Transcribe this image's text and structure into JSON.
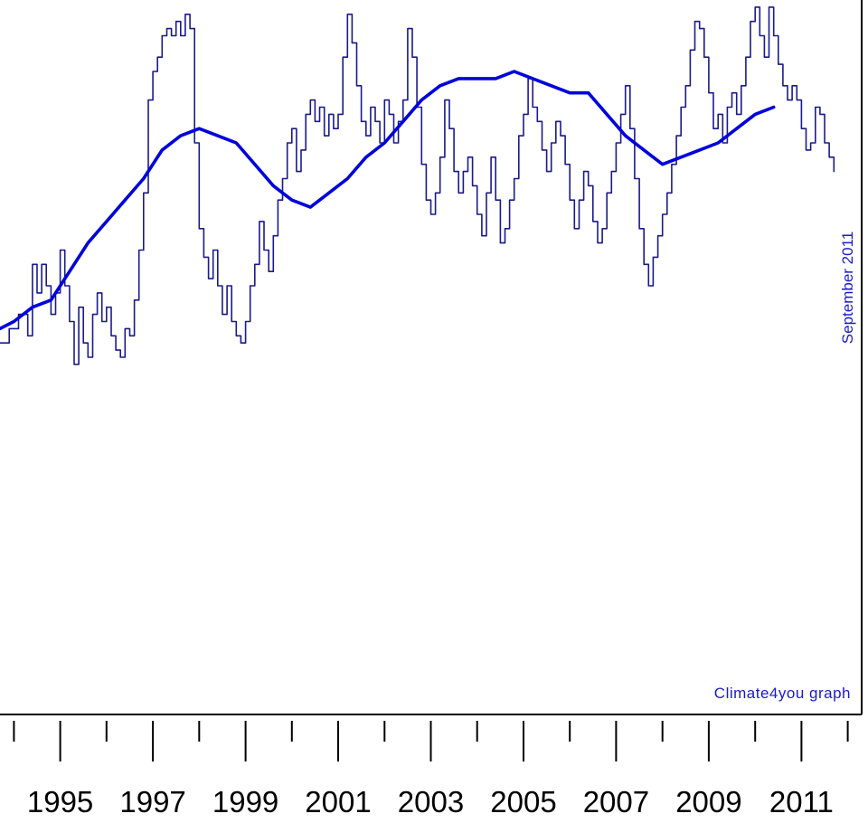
{
  "chart_data": {
    "type": "line",
    "title": "",
    "xlabel": "",
    "ylabel": "",
    "xlim": [
      1993.7,
      2012.3
    ],
    "ylim": [
      0,
      1
    ],
    "grid": false,
    "x_tick_labels": [
      "1995",
      "1997",
      "1999",
      "2001",
      "2003",
      "2005",
      "2007",
      "2009",
      "2011"
    ],
    "annotations": {
      "date": "September 2011",
      "credit": "Climate4you graph"
    },
    "colors": {
      "monthly": "#1a1a8c",
      "running_mean": "#0000dd",
      "annotation_text": "#1a1acc",
      "axes": "#000000"
    },
    "series": [
      {
        "role": "monthly",
        "points": [
          [
            1993.7,
            0.52
          ],
          [
            1993.9,
            0.54
          ],
          [
            1994.1,
            0.56
          ],
          [
            1994.3,
            0.53
          ],
          [
            1994.4,
            0.63
          ],
          [
            1994.5,
            0.59
          ],
          [
            1994.6,
            0.63
          ],
          [
            1994.7,
            0.6
          ],
          [
            1994.8,
            0.56
          ],
          [
            1994.9,
            0.59
          ],
          [
            1995.0,
            0.65
          ],
          [
            1995.1,
            0.6
          ],
          [
            1995.2,
            0.55
          ],
          [
            1995.3,
            0.49
          ],
          [
            1995.4,
            0.57
          ],
          [
            1995.5,
            0.52
          ],
          [
            1995.6,
            0.5
          ],
          [
            1995.7,
            0.56
          ],
          [
            1995.8,
            0.59
          ],
          [
            1995.9,
            0.55
          ],
          [
            1996.0,
            0.57
          ],
          [
            1996.1,
            0.53
          ],
          [
            1996.2,
            0.51
          ],
          [
            1996.3,
            0.5
          ],
          [
            1996.4,
            0.54
          ],
          [
            1996.5,
            0.53
          ],
          [
            1996.6,
            0.58
          ],
          [
            1996.7,
            0.65
          ],
          [
            1996.8,
            0.73
          ],
          [
            1996.9,
            0.86
          ],
          [
            1997.0,
            0.9
          ],
          [
            1997.1,
            0.92
          ],
          [
            1997.2,
            0.95
          ],
          [
            1997.3,
            0.96
          ],
          [
            1997.4,
            0.95
          ],
          [
            1997.5,
            0.97
          ],
          [
            1997.6,
            0.95
          ],
          [
            1997.7,
            0.98
          ],
          [
            1997.8,
            0.96
          ],
          [
            1997.9,
            0.8
          ],
          [
            1998.0,
            0.68
          ],
          [
            1998.1,
            0.64
          ],
          [
            1998.2,
            0.61
          ],
          [
            1998.3,
            0.65
          ],
          [
            1998.4,
            0.6
          ],
          [
            1998.5,
            0.56
          ],
          [
            1998.6,
            0.6
          ],
          [
            1998.7,
            0.55
          ],
          [
            1998.8,
            0.53
          ],
          [
            1998.9,
            0.52
          ],
          [
            1999.0,
            0.55
          ],
          [
            1999.1,
            0.6
          ],
          [
            1999.2,
            0.63
          ],
          [
            1999.3,
            0.69
          ],
          [
            1999.4,
            0.65
          ],
          [
            1999.5,
            0.62
          ],
          [
            1999.6,
            0.67
          ],
          [
            1999.7,
            0.72
          ],
          [
            1999.8,
            0.75
          ],
          [
            1999.9,
            0.8
          ],
          [
            2000.0,
            0.82
          ],
          [
            2000.1,
            0.76
          ],
          [
            2000.2,
            0.79
          ],
          [
            2000.3,
            0.84
          ],
          [
            2000.4,
            0.86
          ],
          [
            2000.5,
            0.83
          ],
          [
            2000.6,
            0.85
          ],
          [
            2000.7,
            0.81
          ],
          [
            2000.8,
            0.84
          ],
          [
            2000.9,
            0.82
          ],
          [
            2001.0,
            0.84
          ],
          [
            2001.1,
            0.92
          ],
          [
            2001.2,
            0.98
          ],
          [
            2001.3,
            0.94
          ],
          [
            2001.4,
            0.88
          ],
          [
            2001.5,
            0.83
          ],
          [
            2001.6,
            0.81
          ],
          [
            2001.7,
            0.85
          ],
          [
            2001.8,
            0.83
          ],
          [
            2001.9,
            0.8
          ],
          [
            2002.0,
            0.86
          ],
          [
            2002.1,
            0.84
          ],
          [
            2002.2,
            0.8
          ],
          [
            2002.3,
            0.83
          ],
          [
            2002.4,
            0.86
          ],
          [
            2002.5,
            0.96
          ],
          [
            2002.6,
            0.92
          ],
          [
            2002.7,
            0.85
          ],
          [
            2002.8,
            0.77
          ],
          [
            2002.9,
            0.72
          ],
          [
            2003.0,
            0.7
          ],
          [
            2003.1,
            0.73
          ],
          [
            2003.2,
            0.78
          ],
          [
            2003.3,
            0.86
          ],
          [
            2003.4,
            0.82
          ],
          [
            2003.5,
            0.76
          ],
          [
            2003.6,
            0.73
          ],
          [
            2003.7,
            0.76
          ],
          [
            2003.8,
            0.78
          ],
          [
            2003.9,
            0.74
          ],
          [
            2004.0,
            0.7
          ],
          [
            2004.1,
            0.67
          ],
          [
            2004.2,
            0.73
          ],
          [
            2004.3,
            0.78
          ],
          [
            2004.4,
            0.72
          ],
          [
            2004.5,
            0.66
          ],
          [
            2004.6,
            0.68
          ],
          [
            2004.7,
            0.72
          ],
          [
            2004.8,
            0.75
          ],
          [
            2004.9,
            0.81
          ],
          [
            2005.0,
            0.84
          ],
          [
            2005.1,
            0.89
          ],
          [
            2005.2,
            0.85
          ],
          [
            2005.3,
            0.83
          ],
          [
            2005.4,
            0.79
          ],
          [
            2005.5,
            0.76
          ],
          [
            2005.6,
            0.8
          ],
          [
            2005.7,
            0.83
          ],
          [
            2005.8,
            0.81
          ],
          [
            2005.9,
            0.77
          ],
          [
            2006.0,
            0.72
          ],
          [
            2006.1,
            0.68
          ],
          [
            2006.2,
            0.72
          ],
          [
            2006.3,
            0.76
          ],
          [
            2006.4,
            0.74
          ],
          [
            2006.5,
            0.69
          ],
          [
            2006.6,
            0.66
          ],
          [
            2006.7,
            0.68
          ],
          [
            2006.8,
            0.73
          ],
          [
            2006.9,
            0.76
          ],
          [
            2007.0,
            0.8
          ],
          [
            2007.1,
            0.84
          ],
          [
            2007.2,
            0.88
          ],
          [
            2007.3,
            0.82
          ],
          [
            2007.4,
            0.75
          ],
          [
            2007.5,
            0.68
          ],
          [
            2007.6,
            0.63
          ],
          [
            2007.7,
            0.6
          ],
          [
            2007.8,
            0.64
          ],
          [
            2007.9,
            0.67
          ],
          [
            2008.0,
            0.7
          ],
          [
            2008.1,
            0.73
          ],
          [
            2008.2,
            0.77
          ],
          [
            2008.3,
            0.81
          ],
          [
            2008.4,
            0.85
          ],
          [
            2008.5,
            0.88
          ],
          [
            2008.6,
            0.93
          ],
          [
            2008.7,
            0.97
          ],
          [
            2008.8,
            0.96
          ],
          [
            2008.9,
            0.92
          ],
          [
            2009.0,
            0.87
          ],
          [
            2009.1,
            0.82
          ],
          [
            2009.2,
            0.84
          ],
          [
            2009.3,
            0.8
          ],
          [
            2009.4,
            0.85
          ],
          [
            2009.5,
            0.87
          ],
          [
            2009.6,
            0.84
          ],
          [
            2009.7,
            0.88
          ],
          [
            2009.8,
            0.92
          ],
          [
            2009.9,
            0.97
          ],
          [
            2010.0,
            0.99
          ],
          [
            2010.1,
            0.95
          ],
          [
            2010.2,
            0.92
          ],
          [
            2010.3,
            0.99
          ],
          [
            2010.4,
            0.95
          ],
          [
            2010.5,
            0.91
          ],
          [
            2010.6,
            0.88
          ],
          [
            2010.7,
            0.86
          ],
          [
            2010.8,
            0.88
          ],
          [
            2010.9,
            0.86
          ],
          [
            2011.0,
            0.82
          ],
          [
            2011.1,
            0.79
          ],
          [
            2011.2,
            0.8
          ],
          [
            2011.3,
            0.85
          ],
          [
            2011.4,
            0.84
          ],
          [
            2011.5,
            0.8
          ],
          [
            2011.6,
            0.78
          ],
          [
            2011.7,
            0.76
          ]
        ]
      },
      {
        "role": "running_mean",
        "points": [
          [
            1993.7,
            0.54
          ],
          [
            1994.0,
            0.55
          ],
          [
            1994.4,
            0.57
          ],
          [
            1994.8,
            0.58
          ],
          [
            1995.2,
            0.62
          ],
          [
            1995.6,
            0.66
          ],
          [
            1996.0,
            0.69
          ],
          [
            1996.4,
            0.72
          ],
          [
            1996.8,
            0.75
          ],
          [
            1997.2,
            0.79
          ],
          [
            1997.6,
            0.81
          ],
          [
            1998.0,
            0.82
          ],
          [
            1998.4,
            0.81
          ],
          [
            1998.8,
            0.8
          ],
          [
            1999.2,
            0.77
          ],
          [
            1999.6,
            0.74
          ],
          [
            2000.0,
            0.72
          ],
          [
            2000.4,
            0.71
          ],
          [
            2000.8,
            0.73
          ],
          [
            2001.2,
            0.75
          ],
          [
            2001.6,
            0.78
          ],
          [
            2002.0,
            0.8
          ],
          [
            2002.4,
            0.83
          ],
          [
            2002.8,
            0.86
          ],
          [
            2003.2,
            0.88
          ],
          [
            2003.6,
            0.89
          ],
          [
            2004.0,
            0.89
          ],
          [
            2004.4,
            0.89
          ],
          [
            2004.8,
            0.9
          ],
          [
            2005.2,
            0.89
          ],
          [
            2005.6,
            0.88
          ],
          [
            2006.0,
            0.87
          ],
          [
            2006.4,
            0.87
          ],
          [
            2006.8,
            0.84
          ],
          [
            2007.2,
            0.81
          ],
          [
            2007.6,
            0.79
          ],
          [
            2008.0,
            0.77
          ],
          [
            2008.4,
            0.78
          ],
          [
            2008.8,
            0.79
          ],
          [
            2009.2,
            0.8
          ],
          [
            2009.6,
            0.82
          ],
          [
            2010.0,
            0.84
          ],
          [
            2010.4,
            0.85
          ]
        ]
      }
    ]
  }
}
